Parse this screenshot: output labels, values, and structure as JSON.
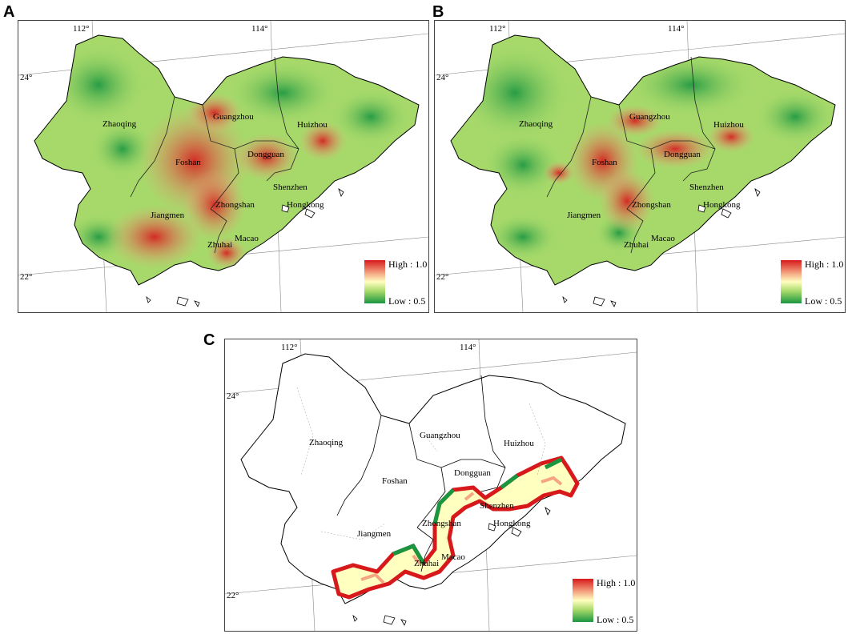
{
  "panels": [
    {
      "id": "A",
      "longitudes": [
        "112°",
        "114°"
      ],
      "latitudes": [
        "24°",
        "22°"
      ],
      "cities": [
        "Zhaoqing",
        "Guangzhou",
        "Huizhou",
        "Foshan",
        "Dongguan",
        "Shenzhen",
        "Jiangmen",
        "Zhongshan",
        "Hongkong",
        "Zhuhai",
        "Macao"
      ],
      "legend": {
        "high": "High : 1.0",
        "low": "Low : 0.5"
      }
    },
    {
      "id": "B",
      "longitudes": [
        "112°",
        "114°"
      ],
      "latitudes": [
        "24°",
        "22°"
      ],
      "cities": [
        "Zhaoqing",
        "Guangzhou",
        "Huizhou",
        "Foshan",
        "Dongguan",
        "Shenzhen",
        "Jiangmen",
        "Zhongshan",
        "Hongkong",
        "Zhuhai",
        "Macao"
      ],
      "legend": {
        "high": "High : 1.0",
        "low": "Low : 0.5"
      }
    },
    {
      "id": "C",
      "longitudes": [
        "112°",
        "114°"
      ],
      "latitudes": [
        "24°",
        "22°"
      ],
      "cities": [
        "Zhaoqing",
        "Guangzhou",
        "Huizhou",
        "Foshan",
        "Dongguan",
        "Shenzhen",
        "Jiangmen",
        "Zhongshan",
        "Hongkong",
        "Zhuhai",
        "Macao"
      ],
      "legend": {
        "high": "High : 1.0",
        "low": "Low : 0.5"
      }
    }
  ],
  "colors": {
    "high": "#d7191c",
    "mid": "#ffffbf",
    "low": "#1a9641"
  }
}
